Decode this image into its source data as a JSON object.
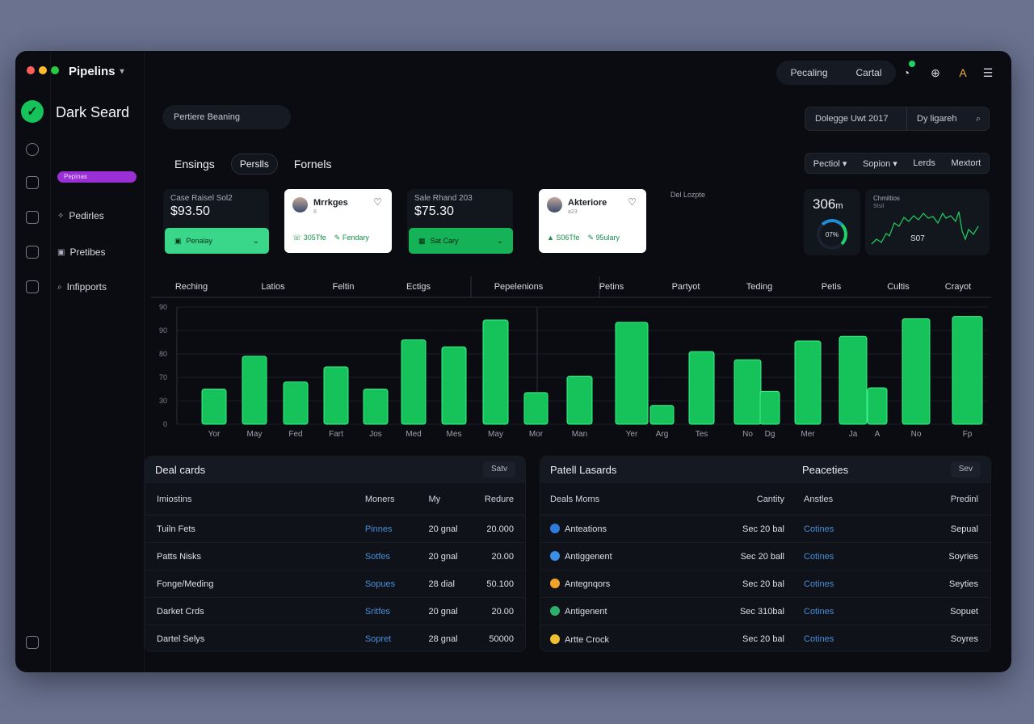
{
  "window": {
    "title": "Pipelins",
    "traffic_lights": [
      "#ff5f57",
      "#febc2e",
      "#28c840"
    ]
  },
  "brand": {
    "name": "Dark Seard",
    "logo_icon": "check-icon"
  },
  "sidebar": {
    "badge": "Pepinas",
    "items": [
      {
        "label": "Pedirles",
        "icon": "sparkle-icon"
      },
      {
        "label": "Pretibes",
        "icon": "folder-icon"
      },
      {
        "label": "Infipports",
        "icon": "search-icon"
      }
    ]
  },
  "topbar": {
    "pill_left": "Pecaling",
    "pill_right": "Cartal",
    "icons": [
      "notification-icon",
      "globe-icon",
      "profile-icon",
      "menu-icon"
    ]
  },
  "search": {
    "value": "Pertiere Beaning"
  },
  "filter": {
    "date": "Dolegge Uwt 2017",
    "owner": "Dy ligareh"
  },
  "tabs": [
    {
      "label": "Ensings",
      "style": "plain"
    },
    {
      "label": "Perslls",
      "style": "pill"
    },
    {
      "label": "Fornels",
      "style": "plain"
    }
  ],
  "segment": [
    "Pectiol ▾",
    "Sopion ▾",
    "Lerds",
    "Mextort"
  ],
  "cards": [
    {
      "type": "dark",
      "label": "Case Raisel Sol2",
      "value": "$93.50",
      "button": "Penalay",
      "color": "#3ad68a"
    },
    {
      "type": "white",
      "name": "Mrrkges",
      "sub": "8",
      "a": "305Tfe",
      "b": "Fendary"
    },
    {
      "type": "dark",
      "label": "Sale Rhand 203",
      "value": "$75.30",
      "button": "Sat Cary",
      "color": "#16b257"
    },
    {
      "type": "white",
      "name": "Akteriore",
      "sub": "a23",
      "a": "S06Tfe",
      "b": "95ulary"
    }
  ],
  "deal_label": "Del Lozpte",
  "stats": {
    "a_value": "306",
    "a_unit": "m",
    "a_percent": "07%",
    "b_label": "Chmiltios",
    "b_sub": "Stsil",
    "b_value": "S07"
  },
  "chart_data": {
    "type": "bar",
    "header_labels": [
      "Reching",
      "Latios",
      "Feltin",
      "Ectigs",
      "Pepelenions",
      "Petins",
      "Partyot",
      "Teding",
      "Petis",
      "Cultis",
      "Crayot"
    ],
    "yticks": [
      "0",
      "30",
      "70",
      "80",
      "90",
      "90"
    ],
    "categories": [
      "Yor",
      "May",
      "Fed",
      "Fart",
      "Jos",
      "Med",
      "Mes",
      "May",
      "Mor",
      "Man",
      "Yer",
      "Arg",
      "Tes",
      "No",
      "Dg",
      "Mer",
      "Ja",
      "A",
      "No",
      "Fp"
    ],
    "values": [
      30,
      58,
      36,
      49,
      30,
      72,
      66,
      89,
      27,
      41,
      87,
      16,
      62,
      55,
      28,
      71,
      75,
      31,
      90,
      92
    ],
    "ylim": [
      0,
      100
    ],
    "grid": true,
    "bar_color": "#16c25a"
  },
  "table_left": {
    "title": "Deal cards",
    "sort": "Satv",
    "columns": [
      "Imiostins",
      "Moners",
      "My",
      "Redure"
    ],
    "rows": [
      [
        "Tuiln Fets",
        "Pinnes",
        "20 gnal",
        "20.000"
      ],
      [
        "Patts Nisks",
        "Sotfes",
        "20 gnal",
        "20.00"
      ],
      [
        "Fonge/Meding",
        "Sopues",
        "28 dial",
        "50.100"
      ],
      [
        "Darket Crds",
        "Sritfes",
        "20 gnal",
        "20.00"
      ],
      [
        "Dartel Selys",
        "Sopret",
        "28 gnal",
        "50000"
      ]
    ]
  },
  "table_right": {
    "title": "Patell Lasards",
    "title2": "Peaceties",
    "sort": "Sev",
    "columns": [
      "Deals Moms",
      "Cantity",
      "Anstles",
      "Predinl"
    ],
    "rows": [
      {
        "icon_color": "#2f7bdc",
        "cells": [
          "Anteations",
          "Sec 20 bal",
          "Cotines",
          "Sepual"
        ]
      },
      {
        "icon_color": "#3a90e8",
        "cells": [
          "Antiggenent",
          "Sec 20 ball",
          "Cotines",
          "Soyries"
        ]
      },
      {
        "icon_color": "#f0a22a",
        "cells": [
          "Antegnqors",
          "Sec 20 bal",
          "Cotines",
          "Seyties"
        ]
      },
      {
        "icon_color": "#2ab06a",
        "cells": [
          "Antigenent",
          "Sec 310bal",
          "Cotines",
          "Sopuet"
        ]
      },
      {
        "icon_color": "#f0c030",
        "cells": [
          "Artte Crock",
          "Sec 20 bal",
          "Cotines",
          "Soyres"
        ]
      }
    ]
  }
}
